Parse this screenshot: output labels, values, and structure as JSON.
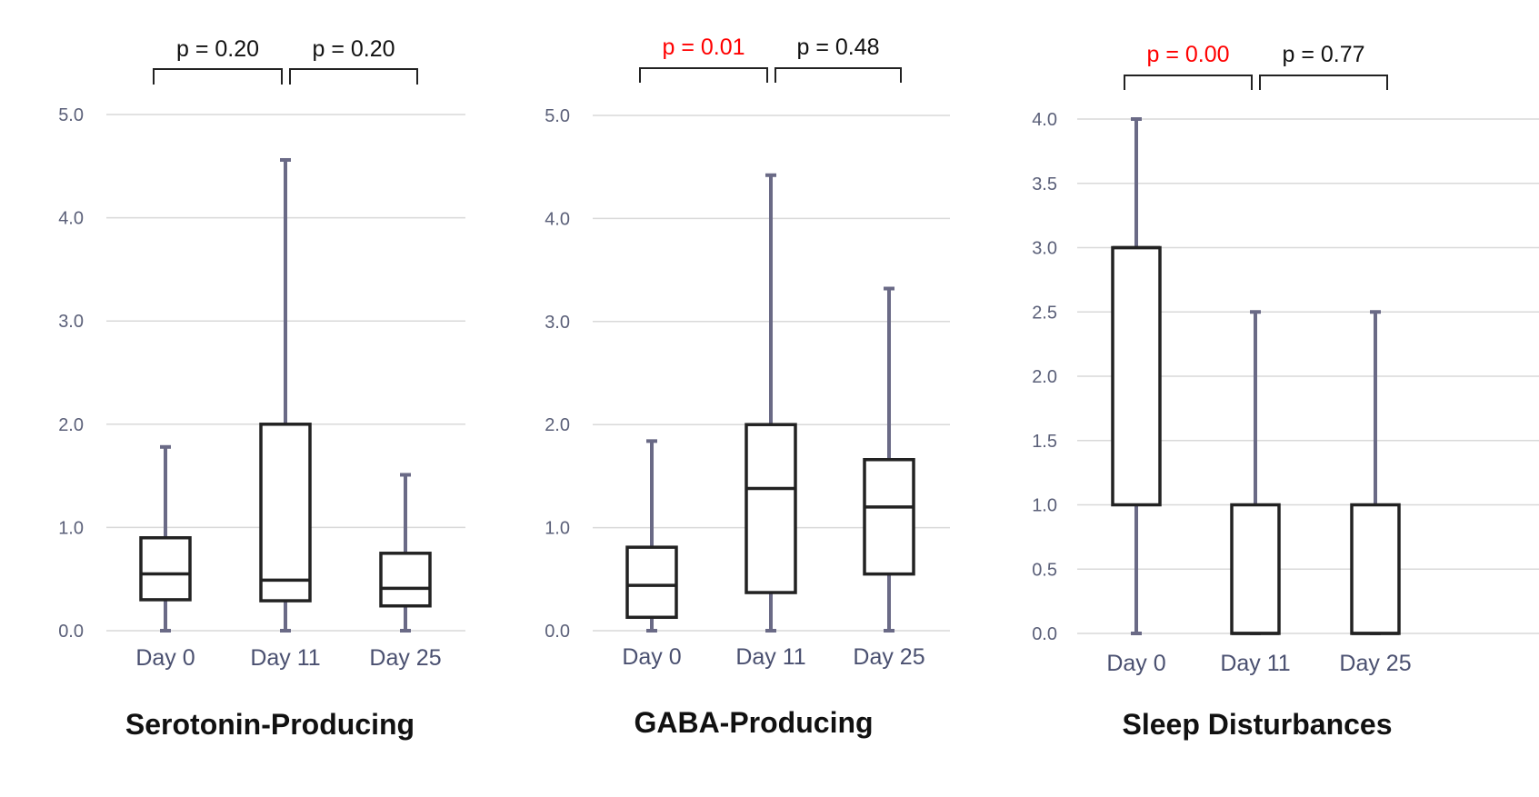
{
  "colors": {
    "grid": "#d9d9d9",
    "box": "#222222",
    "whisker": "#6a6a86",
    "significant": "#ff0000",
    "nonsignificant": "#111111"
  },
  "chart_data": [
    {
      "type": "box",
      "title": "Serotonin-Producing",
      "categories": [
        "Day 0",
        "Day 11",
        "Day 25"
      ],
      "ylim": [
        0,
        5
      ],
      "yticks": [
        0,
        1,
        2,
        3,
        4,
        5
      ],
      "ytick_labels": [
        "0.0",
        "1.0",
        "2.0",
        "3.0",
        "4.0",
        "5.0"
      ],
      "grid": true,
      "boxes": [
        {
          "min": 0.0,
          "q1": 0.3,
          "median": 0.55,
          "q3": 0.9,
          "max": 1.78
        },
        {
          "min": 0.0,
          "q1": 0.29,
          "median": 0.49,
          "q3": 2.0,
          "max": 4.56
        },
        {
          "min": 0.0,
          "q1": 0.24,
          "median": 0.41,
          "q3": 0.75,
          "max": 1.51
        }
      ],
      "comparisons": [
        {
          "from": "Day 0",
          "to": "Day 11",
          "label": "p = 0.20",
          "significant": false
        },
        {
          "from": "Day 11",
          "to": "Day 25",
          "label": "p = 0.20",
          "significant": false
        }
      ]
    },
    {
      "type": "box",
      "title": "GABA-Producing",
      "categories": [
        "Day 0",
        "Day 11",
        "Day 25"
      ],
      "ylim": [
        0,
        5
      ],
      "yticks": [
        0,
        1,
        2,
        3,
        4,
        5
      ],
      "ytick_labels": [
        "0.0",
        "1.0",
        "2.0",
        "3.0",
        "4.0",
        "5.0"
      ],
      "grid": true,
      "boxes": [
        {
          "min": 0.0,
          "q1": 0.13,
          "median": 0.44,
          "q3": 0.81,
          "max": 1.84
        },
        {
          "min": 0.0,
          "q1": 0.37,
          "median": 1.38,
          "q3": 2.0,
          "max": 4.42
        },
        {
          "min": 0.0,
          "q1": 0.55,
          "median": 1.2,
          "q3": 1.66,
          "max": 3.32
        }
      ],
      "comparisons": [
        {
          "from": "Day 0",
          "to": "Day 11",
          "label": "p = 0.01",
          "significant": true
        },
        {
          "from": "Day 11",
          "to": "Day 25",
          "label": "p = 0.48",
          "significant": false
        }
      ]
    },
    {
      "type": "box",
      "title": "Sleep Disturbances",
      "categories": [
        "Day 0",
        "Day 11",
        "Day 25"
      ],
      "ylim": [
        0,
        4
      ],
      "yticks": [
        0,
        0.5,
        1,
        1.5,
        2,
        2.5,
        3,
        3.5,
        4
      ],
      "ytick_labels": [
        "0.0",
        "0.5",
        "1.0",
        "1.5",
        "2.0",
        "2.5",
        "3.0",
        "3.5",
        "4.0"
      ],
      "grid": true,
      "boxes": [
        {
          "min": 0.0,
          "q1": 1.0,
          "median": 3.0,
          "q3": 3.0,
          "max": 4.0
        },
        {
          "min": 0.0,
          "q1": 0.0,
          "median": 0.0,
          "q3": 1.0,
          "max": 2.5
        },
        {
          "min": 0.0,
          "q1": 0.0,
          "median": 0.0,
          "q3": 1.0,
          "max": 2.5
        }
      ],
      "comparisons": [
        {
          "from": "Day 0",
          "to": "Day 11",
          "label": "p = 0.00",
          "significant": true
        },
        {
          "from": "Day 11",
          "to": "Day 25",
          "label": "p = 0.77",
          "significant": false
        }
      ]
    }
  ]
}
